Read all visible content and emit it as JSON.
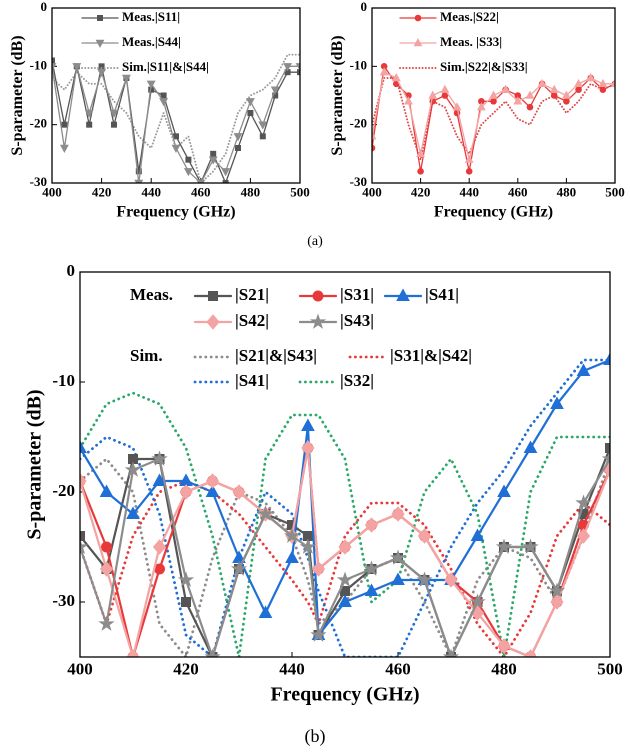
{
  "chart_data": [
    {
      "type": "line",
      "caption": "(a)",
      "xlabel": "Frequency (GHz)",
      "ylabel": "S-parameter (dB)",
      "xlim": [
        400,
        500
      ],
      "xticks": [
        400,
        420,
        440,
        460,
        480,
        500
      ],
      "ylim": [
        -30,
        0
      ],
      "yticks": [
        -30,
        -20,
        -10,
        0
      ],
      "x": [
        400,
        405,
        410,
        415,
        420,
        425,
        430,
        435,
        440,
        445,
        450,
        455,
        460,
        465,
        470,
        475,
        480,
        485,
        490,
        495,
        500
      ],
      "series": [
        {
          "name": "Meas.|S11|",
          "color": "#555555",
          "marker": "square",
          "dash": false,
          "values": [
            -9,
            -20,
            -10,
            -20,
            -10,
            -20,
            -12,
            -28,
            -14,
            -15,
            -22,
            -26,
            -30,
            -25,
            -30,
            -24,
            -18,
            -22,
            -15,
            -11,
            -11
          ]
        },
        {
          "name": "Meas.|S44|",
          "color": "#8c8c8c",
          "marker": "triangle-down",
          "dash": false,
          "values": [
            -10,
            -24,
            -10,
            -18,
            -11,
            -18,
            -12,
            -30,
            -13,
            -16,
            -24,
            -28,
            -30,
            -26,
            -28,
            -22,
            -16,
            -20,
            -14,
            -10,
            -10
          ]
        },
        {
          "name": "Sim.|S11|&|S44|",
          "color": "#9a9a9a",
          "marker": null,
          "dash": true,
          "values": [
            -12,
            -14,
            -11,
            -13,
            -13,
            -16,
            -18,
            -22,
            -24,
            -18,
            -24,
            -22,
            -30,
            -28,
            -25,
            -18,
            -15,
            -14,
            -12,
            -8,
            -8
          ]
        }
      ]
    },
    {
      "type": "line",
      "xlabel": "Frequency (GHz)",
      "ylabel": "S-parameter (dB)",
      "xlim": [
        400,
        500
      ],
      "xticks": [
        400,
        420,
        440,
        460,
        480,
        500
      ],
      "ylim": [
        -30,
        0
      ],
      "yticks": [
        -30,
        -20,
        -10,
        0
      ],
      "x": [
        400,
        405,
        410,
        415,
        420,
        425,
        430,
        435,
        440,
        445,
        450,
        455,
        460,
        465,
        470,
        475,
        480,
        485,
        490,
        495,
        500
      ],
      "series": [
        {
          "name": "Meas.|S22|",
          "color": "#e8393a",
          "marker": "circle",
          "dash": false,
          "values": [
            -24,
            -10,
            -13,
            -15,
            -28,
            -16,
            -15,
            -18,
            -28,
            -16,
            -16,
            -14,
            -15,
            -17,
            -13,
            -15,
            -16,
            -14,
            -12,
            -14,
            -13
          ]
        },
        {
          "name": "Meas. |S33|",
          "color": "#f4a3a3",
          "marker": "triangle",
          "dash": false,
          "values": [
            -22,
            -11,
            -12,
            -16,
            -25,
            -15,
            -14,
            -17,
            -26,
            -17,
            -15,
            -14,
            -16,
            -15,
            -13,
            -14,
            -15,
            -13,
            -12,
            -13,
            -13
          ]
        },
        {
          "name": "Sim.|S22|&|S33|",
          "color": "#e04848",
          "marker": null,
          "dash": true,
          "values": [
            -20,
            -12,
            -12,
            -20,
            -26,
            -16,
            -17,
            -22,
            -25,
            -20,
            -18,
            -16,
            -19,
            -20,
            -16,
            -15,
            -18,
            -16,
            -13,
            -14,
            -13
          ]
        }
      ]
    },
    {
      "type": "line",
      "caption": "(b)",
      "xlabel": "Frequency (GHz)",
      "ylabel": "S-parameter (dB)",
      "legend_titles": [
        "Meas.",
        "Sim."
      ],
      "xlim": [
        400,
        500
      ],
      "xticks": [
        400,
        420,
        440,
        460,
        480,
        500
      ],
      "ylim": [
        -35,
        0
      ],
      "yticks": [
        -30,
        -20,
        -10,
        0
      ],
      "x": [
        400,
        405,
        410,
        415,
        420,
        425,
        430,
        435,
        440,
        443,
        445,
        450,
        455,
        460,
        465,
        470,
        475,
        480,
        485,
        490,
        495,
        500
      ],
      "series": [
        {
          "name": "|S21|",
          "color": "#555555",
          "marker": "square",
          "dash": false,
          "values": [
            -24,
            -27,
            -17,
            -17,
            -30,
            -35,
            -27,
            -22,
            -23,
            -24,
            -33,
            -29,
            -27,
            -26,
            -28,
            -35,
            -30,
            -25,
            -25,
            -29,
            -22,
            -16
          ]
        },
        {
          "name": "|S31|",
          "color": "#e8393a",
          "marker": "circle",
          "dash": false,
          "values": [
            -19,
            -25,
            -35,
            -27,
            -20,
            -19,
            -20,
            -22,
            -24,
            -16,
            -27,
            -25,
            -23,
            -22,
            -24,
            -28,
            -30,
            -34,
            -35,
            -30,
            -23,
            -18
          ]
        },
        {
          "name": "|S41|",
          "color": "#1f6fd6",
          "marker": "triangle",
          "dash": false,
          "values": [
            -16,
            -20,
            -22,
            -19,
            -19,
            -20,
            -26,
            -31,
            -26,
            -14,
            -33,
            -30,
            -29,
            -28,
            -28,
            -28,
            -24,
            -20,
            -16,
            -12,
            -9,
            -8
          ]
        },
        {
          "name": "|S42|",
          "color": "#f4a3a3",
          "marker": "diamond",
          "dash": false,
          "values": [
            -19,
            -27,
            -35,
            -25,
            -20,
            -19,
            -20,
            -22,
            -24,
            -16,
            -27,
            -25,
            -23,
            -22,
            -24,
            -28,
            -31,
            -34,
            -35,
            -30,
            -24,
            -18
          ]
        },
        {
          "name": "|S43|",
          "color": "#8c8c8c",
          "marker": "star",
          "dash": false,
          "values": [
            -25,
            -32,
            -18,
            -17,
            -28,
            -35,
            -27,
            -22,
            -24,
            -25,
            -33,
            -28,
            -27,
            -26,
            -28,
            -35,
            -30,
            -25,
            -25,
            -29,
            -21,
            -17
          ]
        },
        {
          "name": "|S21|&|S43|",
          "color": "#8c8c8c",
          "marker": null,
          "dash": true,
          "values": [
            -19,
            -17,
            -20,
            -32,
            -35,
            -26,
            -20,
            -21,
            -24,
            -28,
            -32,
            -30,
            -27,
            -26,
            -30,
            -35,
            -28,
            -25,
            -26,
            -30,
            -24,
            -17
          ]
        },
        {
          "name": "|S31|&|S42|",
          "color": "#e8393a",
          "marker": null,
          "dash": true,
          "values": [
            -25,
            -32,
            -24,
            -20,
            -19,
            -20,
            -22,
            -25,
            -28,
            -30,
            -32,
            -24,
            -21,
            -21,
            -23,
            -27,
            -32,
            -35,
            -31,
            -24,
            -21,
            -23
          ]
        },
        {
          "name": "|S41|",
          "color": "#1f6fd6",
          "marker": null,
          "dash": true,
          "values": [
            -17,
            -15,
            -16,
            -22,
            -33,
            -35,
            -26,
            -20,
            -22,
            -26,
            -29,
            -35,
            -35,
            -35,
            -30,
            -25,
            -21,
            -18,
            -14,
            -11,
            -8,
            -8
          ]
        },
        {
          "name": "|S32|",
          "color": "#2aa86a",
          "marker": null,
          "dash": true,
          "values": [
            -16,
            -12,
            -11,
            -12,
            -16,
            -24,
            -35,
            -17,
            -13,
            -13,
            -13,
            -17,
            -30,
            -28,
            -20,
            -17,
            -22,
            -35,
            -20,
            -15,
            -15,
            -15
          ]
        }
      ]
    }
  ]
}
